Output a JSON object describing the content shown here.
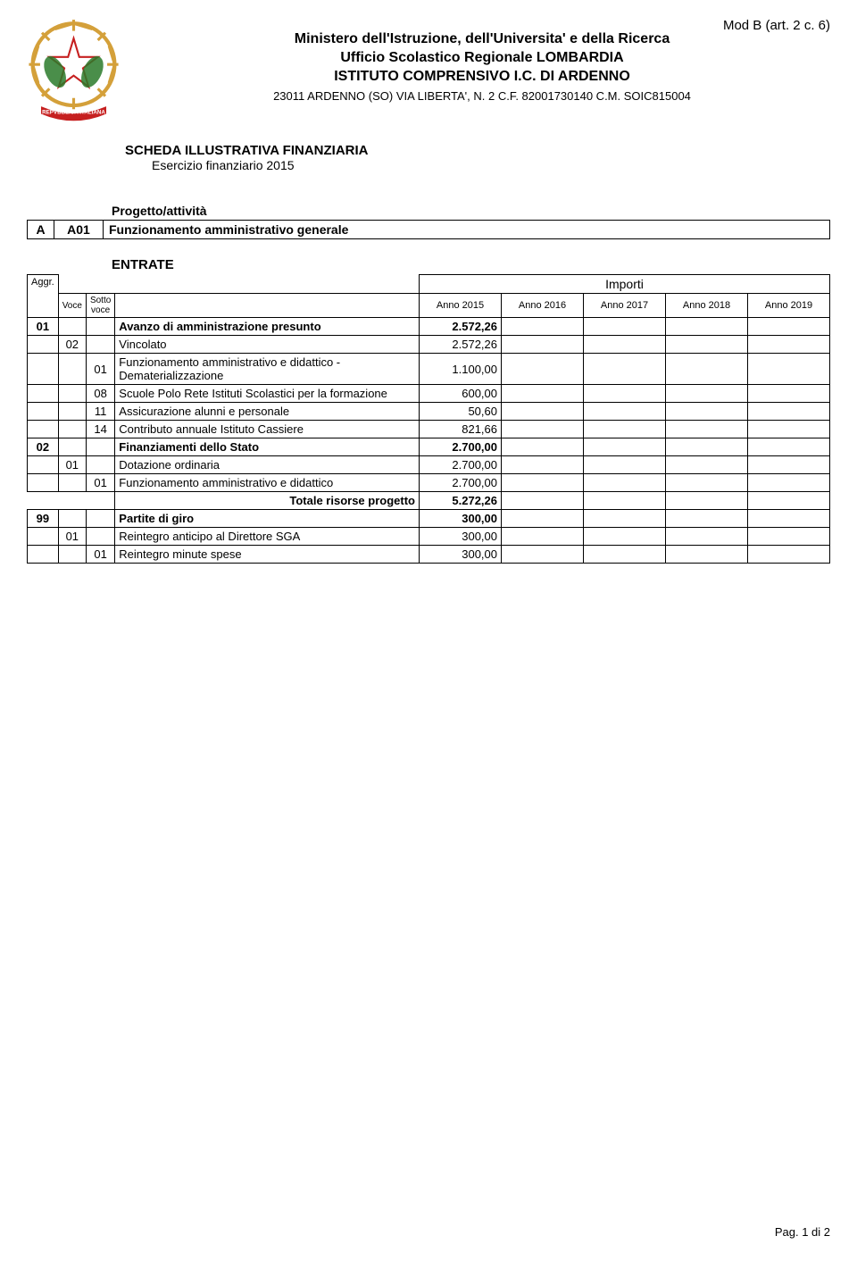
{
  "top_right": "Mod B (art. 2 c. 6)",
  "header": {
    "line1": "Ministero dell'Istruzione, dell'Universita' e della Ricerca",
    "line2": "Ufficio Scolastico Regionale LOMBARDIA",
    "line3": "ISTITUTO COMPRENSIVO I.C. DI   ARDENNO",
    "line4": "23011 ARDENNO (SO) VIA LIBERTA', N. 2 C.F. 82001730140 C.M. SOIC815004"
  },
  "scheda": {
    "title": "SCHEDA ILLUSTRATIVA FINANZIARIA",
    "subtitle": "Esercizio finanziario 2015"
  },
  "progetto": {
    "label": "Progetto/attività",
    "col_a": "A",
    "col_code": "A01",
    "desc": "Funzionamento amministrativo generale"
  },
  "entrate_label": "ENTRATE",
  "table_headers": {
    "aggr": "Aggr.",
    "voce": "Voce",
    "sotto": "Sotto voce",
    "importi": "Importi",
    "anno2015": "Anno 2015",
    "anno2016": "Anno 2016",
    "anno2017": "Anno 2017",
    "anno2018": "Anno 2018",
    "anno2019": "Anno 2019"
  },
  "rows": [
    {
      "aggr": "01",
      "voce": "",
      "sotto": "",
      "desc": "Avanzo di amministrazione presunto",
      "v2015": "2.572,26",
      "bold": true
    },
    {
      "aggr": "",
      "voce": "02",
      "sotto": "",
      "desc": "Vincolato",
      "v2015": "2.572,26",
      "bold": false
    },
    {
      "aggr": "",
      "voce": "",
      "sotto": "01",
      "desc": "Funzionamento amministrativo e didattico - Dematerializzazione",
      "v2015": "1.100,00",
      "bold": false
    },
    {
      "aggr": "",
      "voce": "",
      "sotto": "08",
      "desc": "Scuole Polo Rete Istituti Scolastici per la formazione",
      "v2015": "600,00",
      "bold": false
    },
    {
      "aggr": "",
      "voce": "",
      "sotto": "11",
      "desc": "Assicurazione alunni e personale",
      "v2015": "50,60",
      "bold": false
    },
    {
      "aggr": "",
      "voce": "",
      "sotto": "14",
      "desc": "Contributo annuale Istituto Cassiere",
      "v2015": "821,66",
      "bold": false
    },
    {
      "aggr": "02",
      "voce": "",
      "sotto": "",
      "desc": "Finanziamenti dello Stato",
      "v2015": "2.700,00",
      "bold": true
    },
    {
      "aggr": "",
      "voce": "01",
      "sotto": "",
      "desc": "Dotazione ordinaria",
      "v2015": "2.700,00",
      "bold": false
    },
    {
      "aggr": "",
      "voce": "",
      "sotto": "01",
      "desc": "Funzionamento amministrativo e didattico",
      "v2015": "2.700,00",
      "bold": false
    }
  ],
  "totale": {
    "label": "Totale risorse progetto",
    "v2015": "5.272,26"
  },
  "rows2": [
    {
      "aggr": "99",
      "voce": "",
      "sotto": "",
      "desc": "Partite di giro",
      "v2015": "300,00",
      "bold": true
    },
    {
      "aggr": "",
      "voce": "01",
      "sotto": "",
      "desc": "Reintegro anticipo al Direttore SGA",
      "v2015": "300,00",
      "bold": false
    },
    {
      "aggr": "",
      "voce": "",
      "sotto": "01",
      "desc": "Reintegro minute spese",
      "v2015": "300,00",
      "bold": false
    }
  ],
  "footer": "Pag. 1 di 2",
  "colors": {
    "emblem_gold": "#d4a03a",
    "emblem_red": "#c62020",
    "emblem_blue": "#1e5fa8",
    "emblem_green": "#2a7a2a"
  }
}
